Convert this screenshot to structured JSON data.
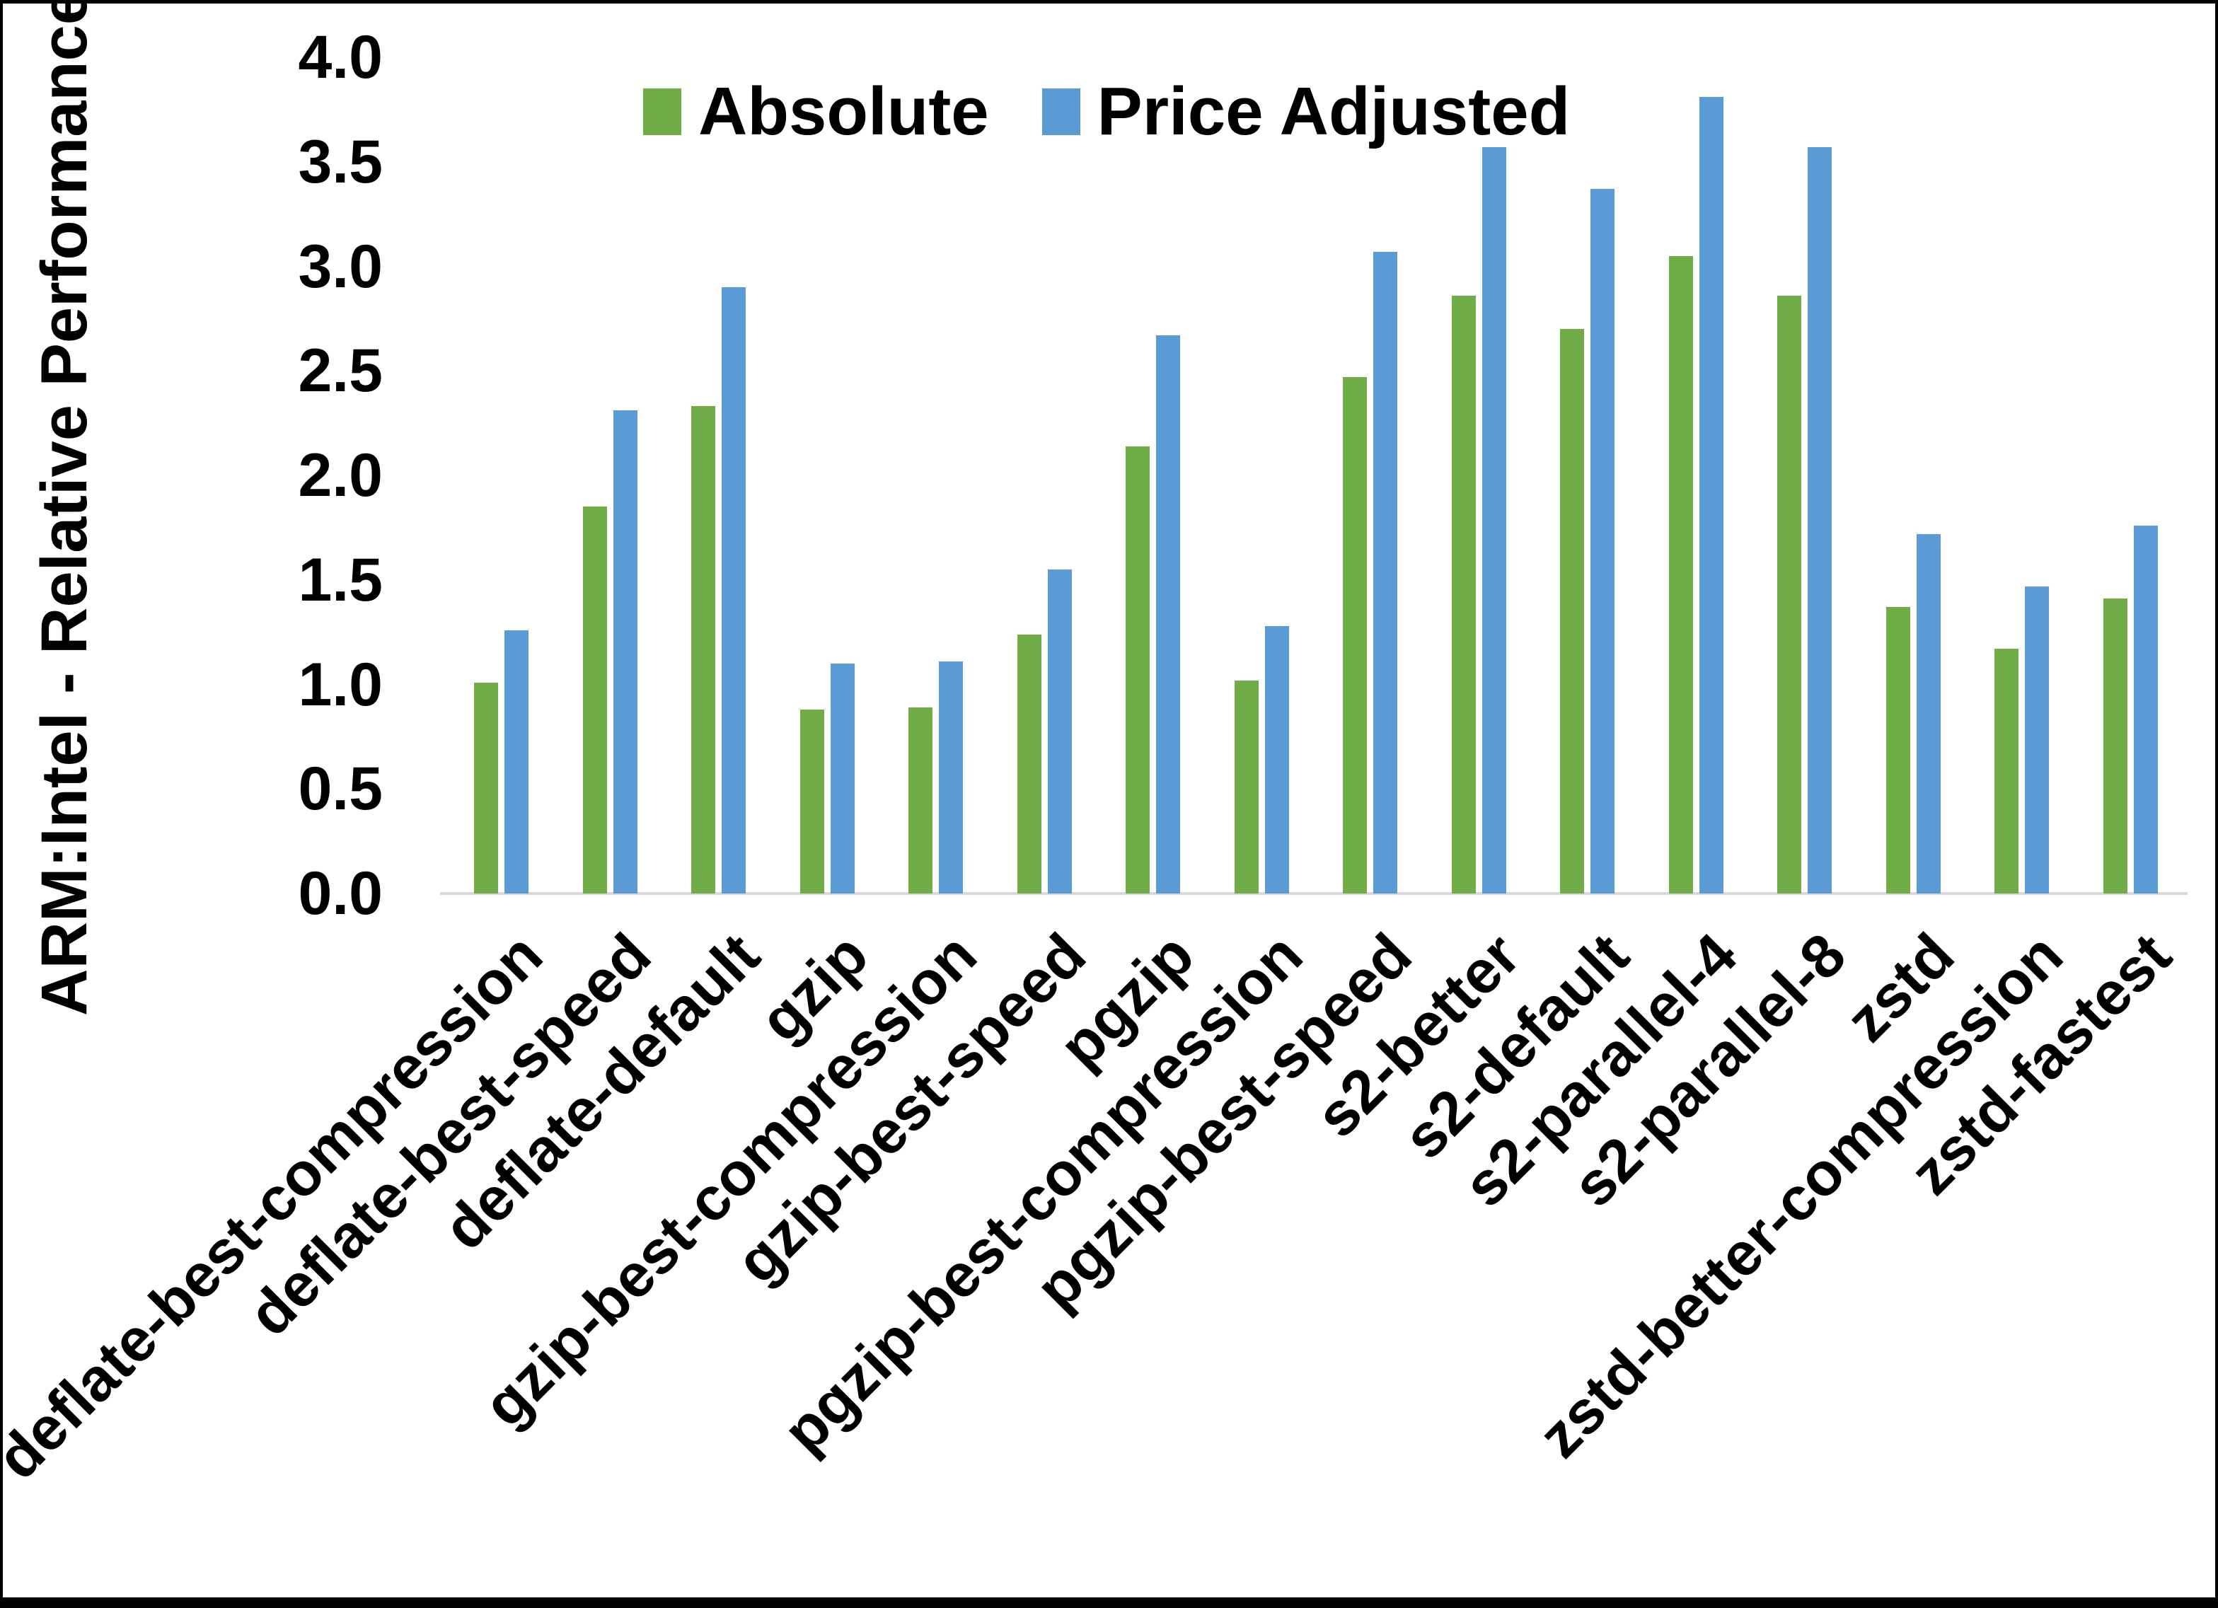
{
  "chart_data": {
    "type": "bar",
    "title": "",
    "xlabel": "",
    "ylabel": "ARM:Intel - Relative Performance",
    "ylim": [
      0.0,
      4.0
    ],
    "ytick_step": 0.5,
    "yticks": [
      "0.0",
      "0.5",
      "1.0",
      "1.5",
      "2.0",
      "2.5",
      "3.0",
      "3.5",
      "4.0"
    ],
    "grid": false,
    "legend_position": "top-center",
    "categories": [
      "deflate-best-compression",
      "deflate-best-speed",
      "deflate-default",
      "gzip",
      "gzip-best-compression",
      "gzip-best-speed",
      "pgzip",
      "pgzip-best-compression",
      "pgzip-best-speed",
      "s2-better",
      "s2-default",
      "s2-parallel-4",
      "s2-parallel-8",
      "zstd",
      "zstd-better-compression",
      "zstd-fastest"
    ],
    "series": [
      {
        "name": "Absolute",
        "color": "#70AD47",
        "values": [
          1.01,
          1.85,
          2.33,
          0.88,
          0.89,
          1.24,
          2.14,
          1.02,
          2.47,
          2.86,
          2.7,
          3.05,
          2.86,
          1.37,
          1.17,
          1.41
        ]
      },
      {
        "name": "Price Adjusted",
        "color": "#5B9BD5",
        "values": [
          1.26,
          2.31,
          2.9,
          1.1,
          1.11,
          1.55,
          2.67,
          1.28,
          3.07,
          3.57,
          3.37,
          3.81,
          3.57,
          1.72,
          1.47,
          1.76
        ]
      }
    ],
    "colors": {
      "axis_line": "#D9D9D9",
      "text": "#000000",
      "background": "#FFFFFF",
      "frame": "#000000"
    }
  }
}
